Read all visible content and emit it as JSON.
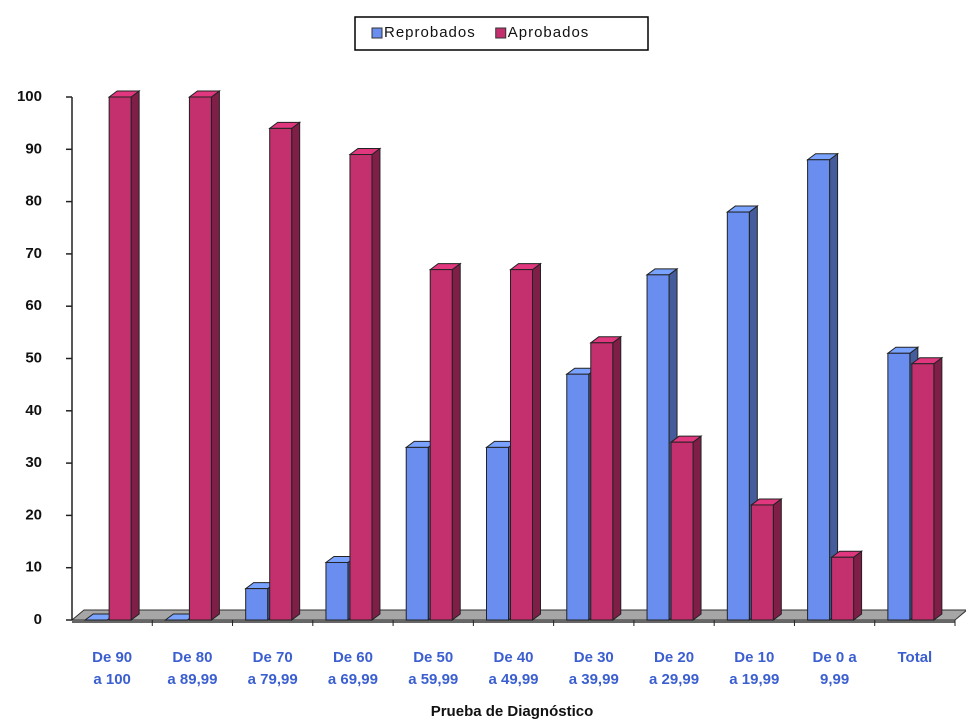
{
  "chart_data": {
    "type": "bar3d",
    "x_label": "Prueba de Diagnóstico",
    "categories": [
      [
        "De 90",
        "a 100"
      ],
      [
        "De 80",
        "a 89,99"
      ],
      [
        "De 70",
        "a 79,99"
      ],
      [
        "De 60",
        "a 69,99"
      ],
      [
        "De 50",
        "a 59,99"
      ],
      [
        "De 40",
        "a 49,99"
      ],
      [
        "De 30",
        "a 39,99"
      ],
      [
        "De 20",
        "a 29,99"
      ],
      [
        "De 10",
        "a 19,99"
      ],
      [
        "De 0 a",
        "9,99"
      ],
      [
        "Total"
      ]
    ],
    "series": [
      {
        "name": "Reprobados",
        "color": "#6a8ef0",
        "values": [
          0,
          0,
          6,
          11,
          33,
          33,
          47,
          66,
          78,
          88,
          51
        ]
      },
      {
        "name": "Aprobados",
        "color": "#c4306e",
        "values": [
          100,
          100,
          94,
          89,
          67,
          67,
          53,
          34,
          22,
          12,
          49
        ]
      }
    ],
    "ylim": [
      0,
      100
    ],
    "yticks": [
      0,
      10,
      20,
      30,
      40,
      50,
      60,
      70,
      80,
      90,
      100
    ],
    "legend": "top"
  }
}
